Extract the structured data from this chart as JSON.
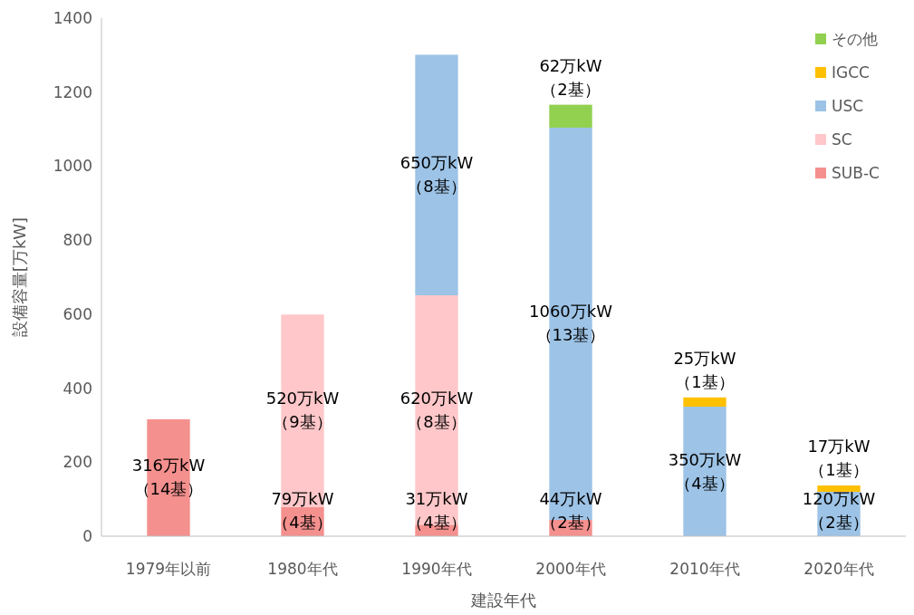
{
  "chart_data": {
    "type": "bar",
    "stacked": true,
    "xlabel": "建設年代",
    "ylabel": "設備容量[万kW]",
    "categories": [
      "1979年以前",
      "1980年代",
      "1990年代",
      "2000年代",
      "2010年代",
      "2020年代"
    ],
    "ylim": [
      0,
      1400
    ],
    "yticks": [
      0,
      200,
      400,
      600,
      800,
      1000,
      1200,
      1400
    ],
    "grid": false,
    "legend": "top right",
    "series": [
      {
        "name": "SUB-C",
        "color": "#f4908e",
        "values": [
          316,
          79,
          31,
          44,
          null,
          null
        ],
        "value_labels": [
          "316万kW\n（14基）",
          "79万kW\n（4基）",
          "31万kW\n（4基）",
          "44万kW\n（2基）",
          null,
          null
        ]
      },
      {
        "name": "SC",
        "color": "#ffc7c9",
        "values": [
          null,
          520,
          620,
          null,
          null,
          null
        ],
        "value_labels": [
          null,
          "520万kW\n（9基）",
          "620万kW\n（8基）",
          null,
          null,
          null
        ]
      },
      {
        "name": "USC",
        "color": "#9dc3e6",
        "values": [
          null,
          null,
          650,
          1060,
          350,
          120
        ],
        "value_labels": [
          null,
          null,
          "650万kW\n（8基）",
          "1060万kW\n（13基）",
          "350万kW\n（4基）",
          "120万kW\n（2基）"
        ]
      },
      {
        "name": "IGCC",
        "color": "#ffc000",
        "values": [
          null,
          null,
          null,
          null,
          25,
          17
        ],
        "value_labels": [
          null,
          null,
          null,
          null,
          "25万kW\n（1基）",
          "17万kW\n（1基）"
        ]
      },
      {
        "name": "その他",
        "color": "#92d050",
        "values": [
          null,
          null,
          null,
          62,
          null,
          null
        ],
        "value_labels": [
          null,
          null,
          null,
          "62万kW\n（2基）",
          null,
          null
        ]
      }
    ]
  }
}
